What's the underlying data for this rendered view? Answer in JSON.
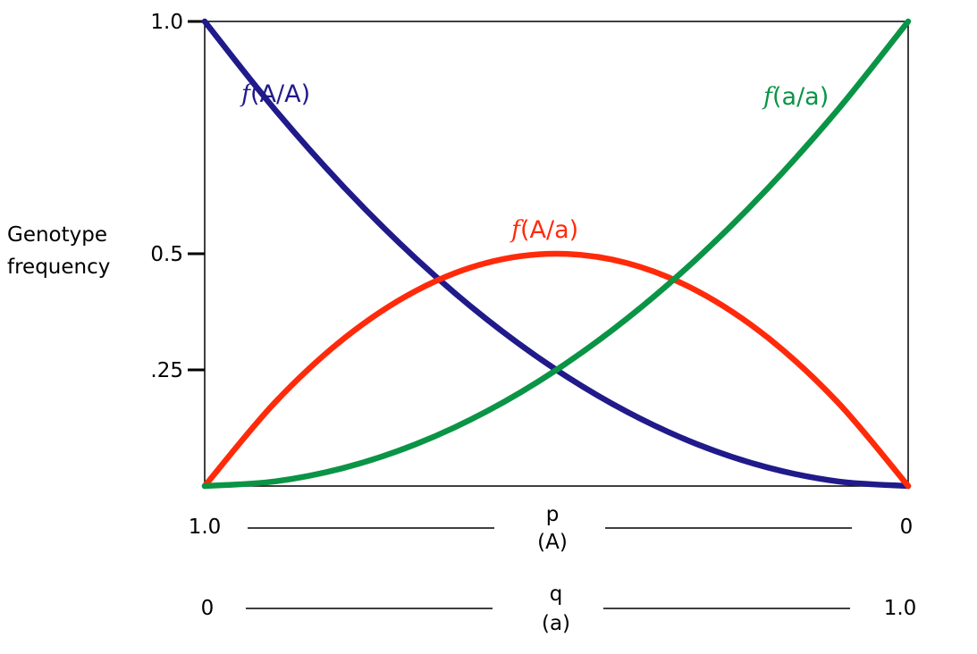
{
  "chart_data": {
    "type": "line",
    "ylabel_lines": [
      "Genotype",
      "frequency"
    ],
    "yticks": [
      {
        "value": 1.0,
        "label": "1.0"
      },
      {
        "value": 0.5,
        "label": "0.5"
      },
      {
        "value": 0.25,
        "label": ".25"
      }
    ],
    "ylim": [
      0,
      1
    ],
    "x_axes": [
      {
        "var": "p",
        "allele": "(A)",
        "left": "1.0",
        "right": "0"
      },
      {
        "var": "q",
        "allele": "(a)",
        "left": "0",
        "right": "1.0"
      }
    ],
    "q_values": [
      0,
      0.1,
      0.2,
      0.3,
      0.4,
      0.5,
      0.6,
      0.7,
      0.8,
      0.9,
      1.0
    ],
    "series": [
      {
        "key": "AA",
        "f": "f",
        "genotype": "(A/A)",
        "color": "#201a8a",
        "values": [
          1.0,
          0.81,
          0.64,
          0.49,
          0.36,
          0.25,
          0.16,
          0.09,
          0.04,
          0.01,
          0.0
        ]
      },
      {
        "key": "Aa",
        "f": "f",
        "genotype": "(A/a)",
        "color": "#ff2a0a",
        "values": [
          0.0,
          0.18,
          0.32,
          0.42,
          0.48,
          0.5,
          0.48,
          0.42,
          0.32,
          0.18,
          0.0
        ]
      },
      {
        "key": "aa",
        "f": "f",
        "genotype": "(a/a)",
        "color": "#0a9445",
        "values": [
          0.0,
          0.01,
          0.04,
          0.09,
          0.16,
          0.25,
          0.36,
          0.49,
          0.64,
          0.81,
          1.0
        ]
      }
    ],
    "grid": false
  }
}
